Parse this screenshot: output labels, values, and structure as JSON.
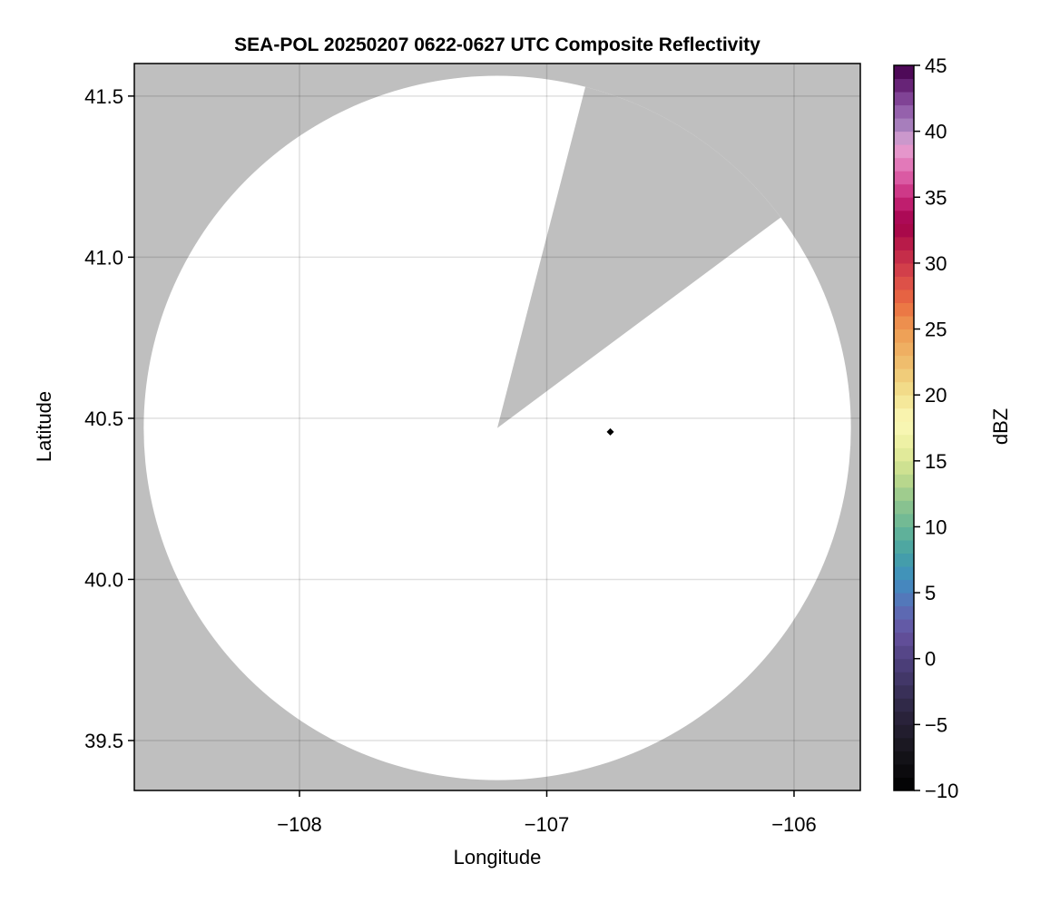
{
  "chart_data": {
    "type": "heatmap",
    "title": "SEA-POL 20250207 0622-0627 UTC Composite Reflectivity",
    "xlabel": "Longitude",
    "ylabel": "Latitude",
    "xlim": [
      -108.668,
      -105.732
    ],
    "ylim": [
      39.345,
      41.601
    ],
    "xticks": [
      -108,
      -107,
      -106
    ],
    "xtick_labels": [
      "−108",
      "−107",
      "−106"
    ],
    "yticks": [
      39.5,
      40.0,
      40.5,
      41.0,
      41.5
    ],
    "ytick_labels": [
      "39.5",
      "40.0",
      "40.5",
      "41.0",
      "41.5"
    ],
    "grid": true,
    "background_color": "#bfbfbf",
    "coverage_color": "#ffffff",
    "radar_coverage": {
      "center_lon": -107.2,
      "center_lat": 40.47,
      "radius_lon_deg": 1.43,
      "radius_lat_deg": 1.093,
      "blocked_sector_edges": [
        [
          -106.84,
          41.54
        ],
        [
          -106.06,
          41.12
        ]
      ]
    },
    "radar_site": {
      "lon": -106.743,
      "lat": 40.458,
      "marker": "diamond",
      "color": "#000000"
    },
    "colorbar": {
      "label": "dBZ",
      "range": [
        -10,
        45
      ],
      "step": 1,
      "ticks": [
        -10,
        -5,
        0,
        5,
        10,
        15,
        20,
        25,
        30,
        35,
        40,
        45
      ],
      "tick_labels": [
        "−10",
        "−5",
        "0",
        "5",
        "10",
        "15",
        "20",
        "25",
        "30",
        "35",
        "40",
        "45"
      ],
      "colormap_stops": [
        [
          -10,
          "#000000"
        ],
        [
          -7,
          "#17151c"
        ],
        [
          -4,
          "#2c2540"
        ],
        [
          -1,
          "#463a70"
        ],
        [
          2,
          "#6652a0"
        ],
        [
          4,
          "#5a70b8"
        ],
        [
          6,
          "#3f8ec0"
        ],
        [
          8,
          "#45a2a4"
        ],
        [
          10,
          "#68b696"
        ],
        [
          12,
          "#92c68e"
        ],
        [
          14,
          "#c4dc8c"
        ],
        [
          16,
          "#eaef9e"
        ],
        [
          18,
          "#fbf8b8"
        ],
        [
          20,
          "#f3e290"
        ],
        [
          22,
          "#efc472"
        ],
        [
          25,
          "#ee9a52"
        ],
        [
          27,
          "#ea6c40"
        ],
        [
          29,
          "#d8484a"
        ],
        [
          31,
          "#bf2448"
        ],
        [
          33,
          "#a2004a"
        ],
        [
          35,
          "#c8287a"
        ],
        [
          37,
          "#e06ab0"
        ],
        [
          39,
          "#e6a4d4"
        ],
        [
          40,
          "#b08cc4"
        ],
        [
          42,
          "#8c52a4"
        ],
        [
          44,
          "#5a1468"
        ],
        [
          45,
          "#420048"
        ]
      ]
    }
  }
}
